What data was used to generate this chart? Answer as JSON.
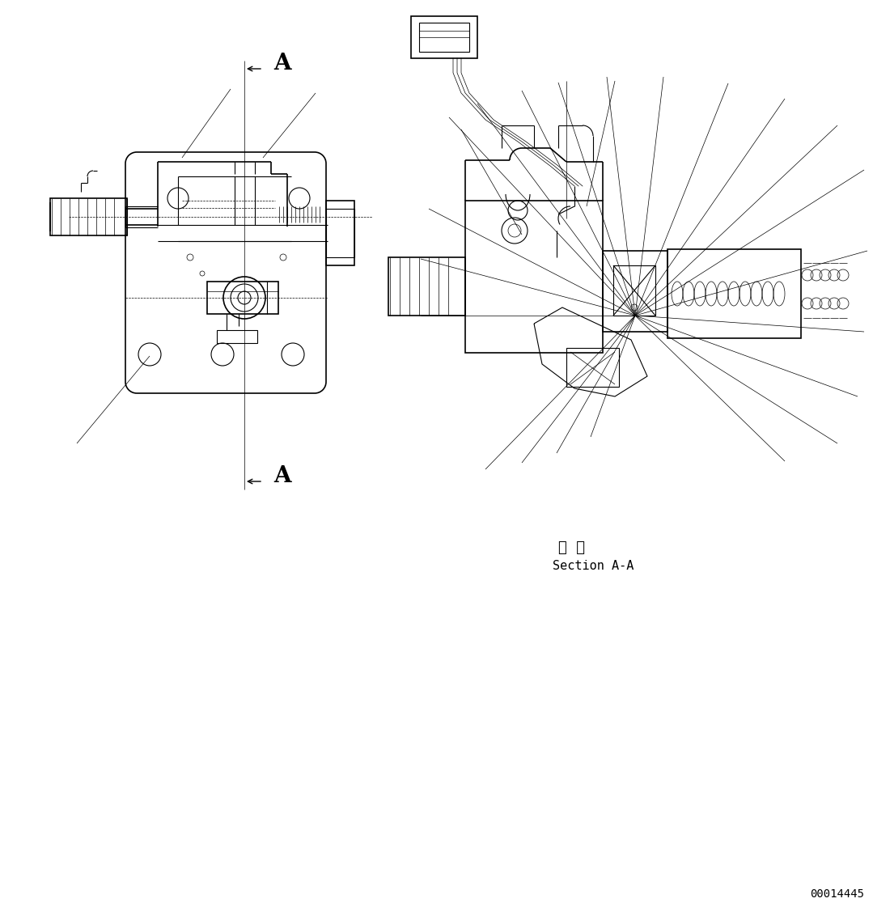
{
  "bg_color": "#ffffff",
  "line_color": "#000000",
  "section_label_japanese": "断  面",
  "section_label_english": "Section A-A",
  "doc_number": "00014445",
  "fig_w": 10.79,
  "fig_h": 11.21,
  "dpi": 100
}
